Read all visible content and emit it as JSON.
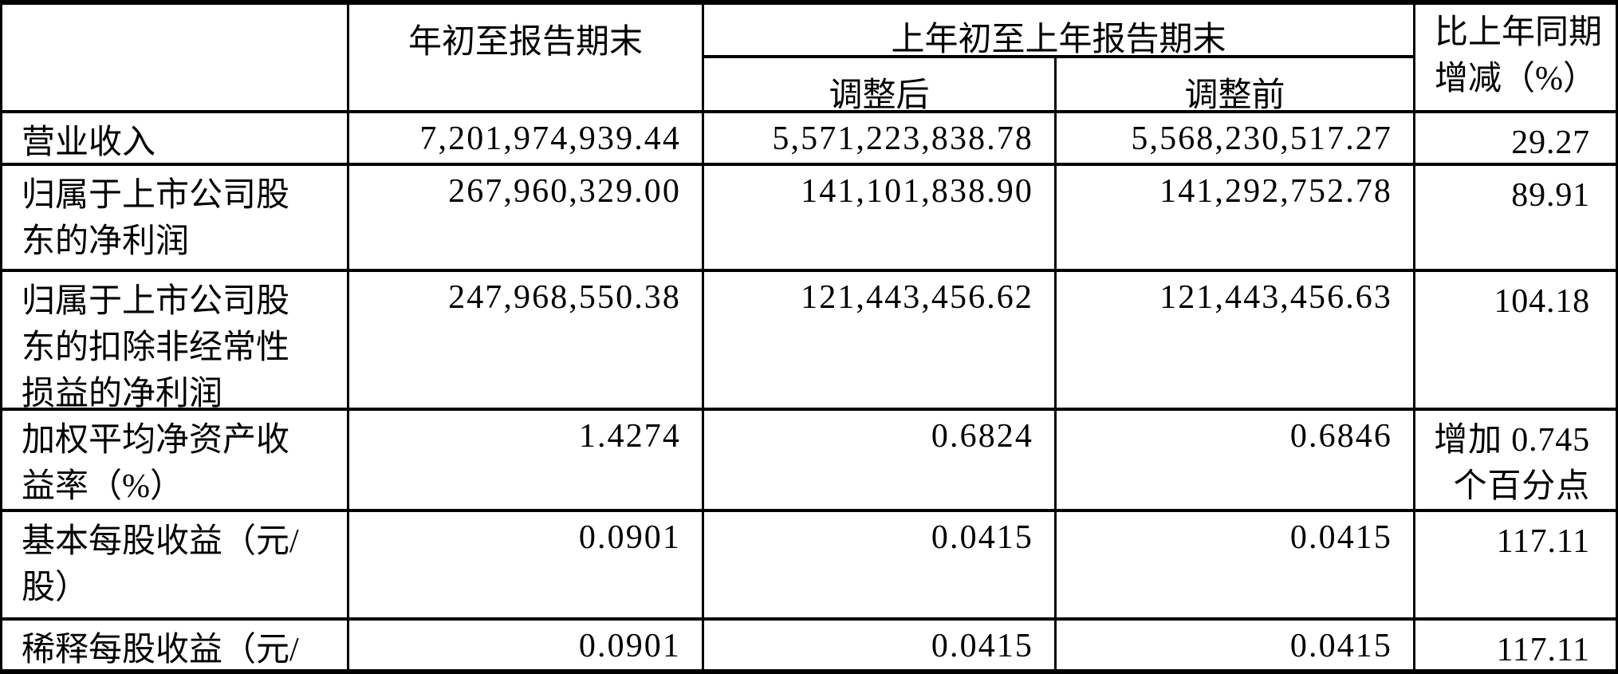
{
  "table": {
    "colors": {
      "border": "#000000",
      "background": "#ffffff",
      "text": "#000000"
    },
    "header": {
      "current_period": "年初至报告期末",
      "prior_group": "上年初至上年报告期末",
      "adjusted": "调整后",
      "before": "调整前",
      "change_lines": [
        "比上年同期",
        "增减（%）"
      ]
    },
    "rows": [
      {
        "label_lines": [
          "营业收入"
        ],
        "current": "7,201,974,939.44",
        "prior_adjusted": "5,571,223,838.78",
        "prior_before": "5,568,230,517.27",
        "change_lines": [
          "29.27"
        ]
      },
      {
        "label_lines": [
          "归属于上市公司股",
          "东的净利润"
        ],
        "current": "267,960,329.00",
        "prior_adjusted": "141,101,838.90",
        "prior_before": "141,292,752.78",
        "change_lines": [
          "89.91"
        ]
      },
      {
        "label_lines": [
          "归属于上市公司股",
          "东的扣除非经常性",
          "损益的净利润"
        ],
        "current": "247,968,550.38",
        "prior_adjusted": "121,443,456.62",
        "prior_before": "121,443,456.63",
        "change_lines": [
          "104.18"
        ]
      },
      {
        "label_lines": [
          "加权平均净资产收",
          "益率（%）"
        ],
        "current": "1.4274",
        "prior_adjusted": "0.6824",
        "prior_before": "0.6846",
        "change_lines": [
          "增加 0.745",
          "个百分点"
        ]
      },
      {
        "label_lines": [
          "基本每股收益（元/",
          "股）"
        ],
        "current": "0.0901",
        "prior_adjusted": "0.0415",
        "prior_before": "0.0415",
        "change_lines": [
          "117.11"
        ]
      },
      {
        "label_lines": [
          "稀释每股收益（元/"
        ],
        "current": "0.0901",
        "prior_adjusted": "0.0415",
        "prior_before": "0.0415",
        "change_lines": [
          "117.11"
        ]
      }
    ]
  }
}
